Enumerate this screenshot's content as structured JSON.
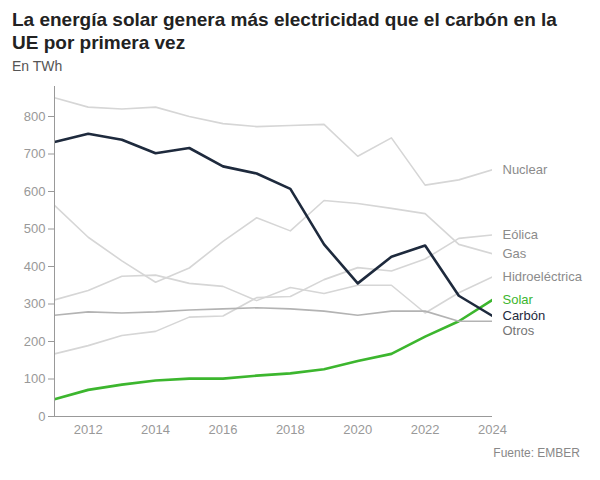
{
  "chart_data": {
    "type": "line",
    "title": "La energía solar genera más electricidad que el carbón en la UE por primera vez",
    "subtitle": "En TWh",
    "source": "Fuente: EMBER",
    "x": [
      2011,
      2012,
      2013,
      2014,
      2015,
      2016,
      2017,
      2018,
      2019,
      2020,
      2021,
      2022,
      2023,
      2024
    ],
    "xlim": [
      2011,
      2024
    ],
    "xticks": [
      2012,
      2014,
      2016,
      2018,
      2020,
      2022,
      2024
    ],
    "ylim": [
      0,
      880
    ],
    "yticks": [
      0,
      100,
      200,
      300,
      400,
      500,
      600,
      700,
      800
    ],
    "grid": false,
    "series": [
      {
        "name": "Nuclear",
        "color": "#d6d6d6",
        "values": [
          850,
          825,
          820,
          825,
          800,
          781,
          773,
          776,
          779,
          694,
          743,
          617,
          631,
          658
        ]
      },
      {
        "name": "Eólica",
        "color": "#d6d6d6",
        "values": [
          167,
          189,
          216,
          227,
          265,
          268,
          317,
          320,
          365,
          397,
          388,
          420,
          475,
          484
        ]
      },
      {
        "name": "Gas",
        "color": "#d6d6d6",
        "values": [
          563,
          478,
          415,
          358,
          396,
          467,
          530,
          495,
          576,
          568,
          555,
          541,
          459,
          434
        ]
      },
      {
        "name": "Hidroeléctrica",
        "color": "#d6d6d6",
        "values": [
          311,
          336,
          374,
          377,
          355,
          347,
          309,
          344,
          328,
          350,
          350,
          276,
          330,
          372
        ]
      },
      {
        "name": "Solar",
        "color": "#3cb62e",
        "values": [
          46,
          71,
          85,
          96,
          101,
          101,
          109,
          115,
          126,
          148,
          167,
          213,
          254,
          311
        ]
      },
      {
        "name": "Carbón",
        "color": "#1e2a3d",
        "values": [
          732,
          754,
          738,
          702,
          716,
          667,
          648,
          607,
          459,
          355,
          426,
          456,
          322,
          268
        ]
      },
      {
        "name": "Otros",
        "color": "#b3b3b3",
        "values": [
          270,
          279,
          276,
          279,
          284,
          287,
          290,
          287,
          281,
          270,
          281,
          281,
          254,
          254
        ]
      }
    ]
  }
}
